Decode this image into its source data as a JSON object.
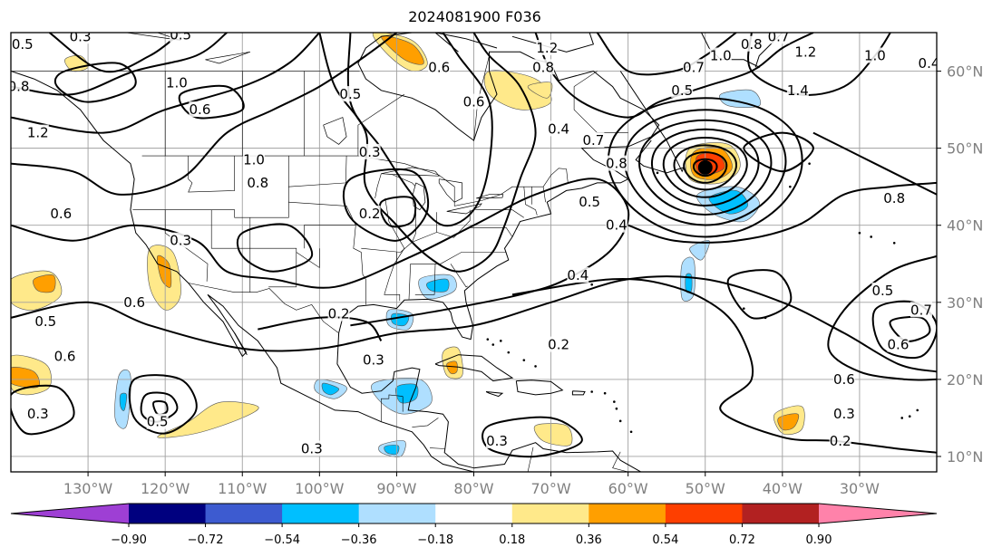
{
  "title": "2024081900 F036",
  "map": {
    "lon_range": [
      -140,
      -20
    ],
    "lat_range": [
      8,
      65
    ],
    "lon_labels": [
      "130°W",
      "120°W",
      "110°W",
      "100°W",
      "90°W",
      "80°W",
      "70°W",
      "60°W",
      "50°W",
      "40°W",
      "30°W"
    ],
    "lat_labels": [
      "10°N",
      "20°N",
      "30°N",
      "40°N",
      "50°N",
      "60°N"
    ],
    "storm_marker": {
      "lon": -50,
      "lat": 47.5,
      "symbol": "filled-circle"
    },
    "contour_color": "#000000",
    "grid_color": "#a0a0a0"
  },
  "contour_labels": [
    {
      "text": "0.5",
      "lon": -138.5,
      "lat": 63.5
    },
    {
      "text": "0.3",
      "lon": -131,
      "lat": 64.5
    },
    {
      "text": "0.5",
      "lon": -118,
      "lat": 64.7
    },
    {
      "text": "0.8",
      "lon": -139,
      "lat": 58
    },
    {
      "text": "1.2",
      "lon": -136.5,
      "lat": 52
    },
    {
      "text": "1.0",
      "lon": -118.5,
      "lat": 58.5
    },
    {
      "text": "0.6",
      "lon": -115.5,
      "lat": 55
    },
    {
      "text": "1.0",
      "lon": -108.5,
      "lat": 48.5
    },
    {
      "text": "0.8",
      "lon": -108,
      "lat": 45.5
    },
    {
      "text": "0.6",
      "lon": -133.5,
      "lat": 41.5
    },
    {
      "text": "0.3",
      "lon": -118,
      "lat": 38
    },
    {
      "text": "0.6",
      "lon": -124,
      "lat": 30
    },
    {
      "text": "0.5",
      "lon": -135.5,
      "lat": 27.5
    },
    {
      "text": "0.6",
      "lon": -133,
      "lat": 23
    },
    {
      "text": "0.3",
      "lon": -136.5,
      "lat": 15.5
    },
    {
      "text": "0.5",
      "lon": -121,
      "lat": 14.5
    },
    {
      "text": "0.3",
      "lon": -101,
      "lat": 11
    },
    {
      "text": "0.5",
      "lon": -96,
      "lat": 57
    },
    {
      "text": "0.3",
      "lon": -93.5,
      "lat": 49.5
    },
    {
      "text": "0.2",
      "lon": -93.5,
      "lat": 41.5
    },
    {
      "text": "0.2",
      "lon": -97.5,
      "lat": 28.5
    },
    {
      "text": "0.3",
      "lon": -93,
      "lat": 22.5
    },
    {
      "text": "0.6",
      "lon": -84.5,
      "lat": 60.5
    },
    {
      "text": "0.6",
      "lon": -80,
      "lat": 56
    },
    {
      "text": "1.2",
      "lon": -70.5,
      "lat": 63
    },
    {
      "text": "0.8",
      "lon": -71,
      "lat": 60.5
    },
    {
      "text": "0.4",
      "lon": -69,
      "lat": 52.5
    },
    {
      "text": "0.7",
      "lon": -64.5,
      "lat": 51
    },
    {
      "text": "0.8",
      "lon": -61.5,
      "lat": 48
    },
    {
      "text": "0.5",
      "lon": -65,
      "lat": 43
    },
    {
      "text": "0.4",
      "lon": -61.5,
      "lat": 40
    },
    {
      "text": "0.4",
      "lon": -66.5,
      "lat": 33.5
    },
    {
      "text": "0.2",
      "lon": -69,
      "lat": 24.5
    },
    {
      "text": "0.3",
      "lon": -77,
      "lat": 12
    },
    {
      "text": "0.7",
      "lon": -51.5,
      "lat": 60.5
    },
    {
      "text": "1.0",
      "lon": -48,
      "lat": 62
    },
    {
      "text": "0.8",
      "lon": -44,
      "lat": 63.5
    },
    {
      "text": "0.7",
      "lon": -40.5,
      "lat": 64.5
    },
    {
      "text": "1.2",
      "lon": -37,
      "lat": 62.5
    },
    {
      "text": "1.4",
      "lon": -38,
      "lat": 57.5
    },
    {
      "text": "0.5",
      "lon": -53,
      "lat": 57.5
    },
    {
      "text": "1.0",
      "lon": -28,
      "lat": 62
    },
    {
      "text": "0.4",
      "lon": -21,
      "lat": 61
    },
    {
      "text": "0.8",
      "lon": -25.5,
      "lat": 43.5
    },
    {
      "text": "0.5",
      "lon": -27,
      "lat": 31.5
    },
    {
      "text": "0.7",
      "lon": -22,
      "lat": 29
    },
    {
      "text": "0.6",
      "lon": -25,
      "lat": 24.5
    },
    {
      "text": "0.6",
      "lon": -32,
      "lat": 20
    },
    {
      "text": "0.3",
      "lon": -32,
      "lat": 15.5
    },
    {
      "text": "0.2",
      "lon": -32.5,
      "lat": 12
    }
  ],
  "colorbar": {
    "colors": [
      "#9e3fd4",
      "#00007f",
      "#3d5bd0",
      "#00bfff",
      "#afdfff",
      "#ffffff",
      "#ffe98a",
      "#ff9f00",
      "#fe3f00",
      "#b22121",
      "#ff82aa"
    ],
    "ticks": [
      "−0.90",
      "−0.72",
      "−0.54",
      "−0.36",
      "−0.18",
      "0.18",
      "0.36",
      "0.54",
      "0.72",
      "0.90"
    ]
  }
}
